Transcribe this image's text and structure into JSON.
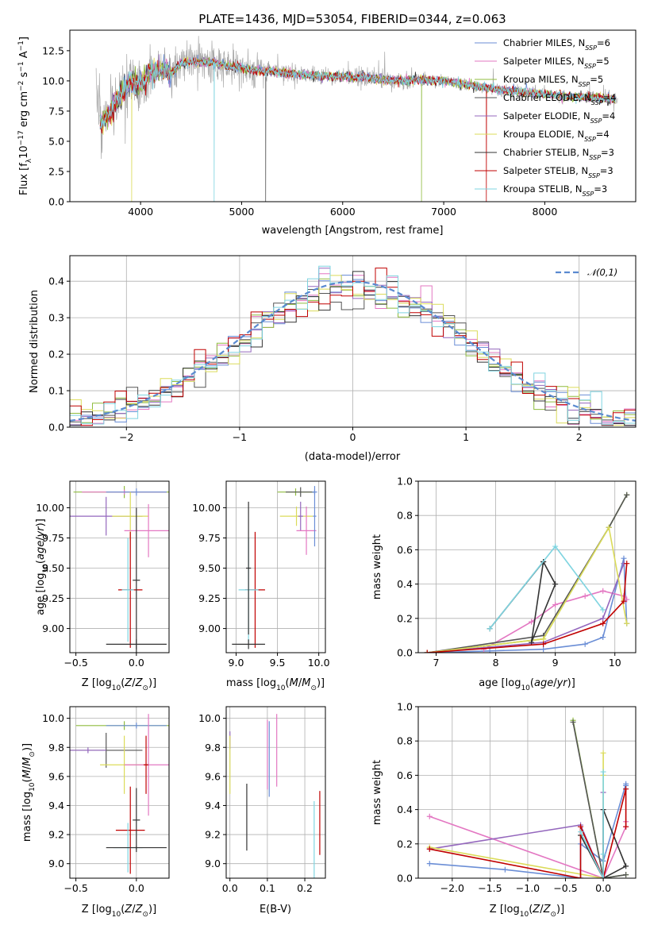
{
  "title": "PLATE=1436, MJD=53054, FIBERID=0344, z=0.063",
  "colors": [
    "#6b8ed6",
    "#e377c2",
    "#8fbc3f",
    "#555555",
    "#9467bd",
    "#dbdb5a",
    "#333333",
    "#c00000",
    "#7fd4e0"
  ],
  "chart_data": [
    {
      "id": "spectrum",
      "type": "line",
      "xlabel": "wavelength [Angstrom, rest frame]",
      "ylabel": "Flux [f_λ 10^-17 erg cm^-2 s^-1 A^-1]",
      "xlim": [
        3300,
        8900
      ],
      "ylim": [
        0,
        14.2
      ],
      "xticks": [
        4000,
        5000,
        6000,
        7000,
        8000
      ],
      "yticks": [
        0.0,
        2.5,
        5.0,
        7.5,
        10.0,
        12.5
      ],
      "grid": false,
      "legend": "upper-right",
      "legend_entries": [
        {
          "base": "Chabrier MILES, N",
          "sub": "SSP",
          "tail": "=6"
        },
        {
          "base": "Salpeter MILES, N",
          "sub": "SSP",
          "tail": "=5"
        },
        {
          "base": "Kroupa MILES, N",
          "sub": "SSP",
          "tail": "=5"
        },
        {
          "base": "Chabrier ELODIE, N",
          "sub": "SSP",
          "tail": "=4"
        },
        {
          "base": "Salpeter ELODIE, N",
          "sub": "SSP",
          "tail": "=4"
        },
        {
          "base": "Kroupa ELODIE, N",
          "sub": "SSP",
          "tail": "=4"
        },
        {
          "base": "Chabrier STELIB, N",
          "sub": "SSP",
          "tail": "=3"
        },
        {
          "base": "Salpeter STELIB, N",
          "sub": "SSP",
          "tail": "=3"
        },
        {
          "base": "Kroupa STELIB, N",
          "sub": "SSP",
          "tail": "=3"
        }
      ],
      "continuum": [
        [
          3600,
          6.3
        ],
        [
          3700,
          7.5
        ],
        [
          3800,
          8.8
        ],
        [
          3900,
          10.0
        ],
        [
          4000,
          9.7
        ],
        [
          4100,
          10.8
        ],
        [
          4200,
          11.0
        ],
        [
          4300,
          10.6
        ],
        [
          4400,
          11.5
        ],
        [
          4500,
          11.6
        ],
        [
          4700,
          11.5
        ],
        [
          4900,
          11.2
        ],
        [
          5100,
          10.9
        ],
        [
          5300,
          10.8
        ],
        [
          5500,
          10.6
        ],
        [
          5800,
          10.4
        ],
        [
          6200,
          10.3
        ],
        [
          6500,
          10.0
        ],
        [
          6800,
          10.1
        ],
        [
          7000,
          10.0
        ],
        [
          7300,
          9.6
        ],
        [
          7600,
          9.2
        ],
        [
          7900,
          9.0
        ],
        [
          8200,
          8.7
        ],
        [
          8500,
          8.6
        ],
        [
          8700,
          8.5
        ]
      ]
    },
    {
      "id": "residuals",
      "type": "histogram",
      "xlabel": "(data-model)/error",
      "ylabel": "Normed distribution",
      "xlim": [
        -2.5,
        2.5
      ],
      "ylim": [
        0,
        0.47
      ],
      "xticks": [
        -2,
        -1,
        0,
        1,
        2
      ],
      "yticks": [
        0.0,
        0.1,
        0.2,
        0.3,
        0.4
      ],
      "grid": true,
      "legend": "upper-right",
      "reference_label": "N(0,1)",
      "bin_width": 0.1
    },
    {
      "id": "age-vs-Z",
      "type": "errorbar",
      "xlabel": "Z [log10(Z/Z⊙)]",
      "ylabel": "age [log10(age/yr)]",
      "xlim": [
        -0.55,
        0.27
      ],
      "ylim": [
        8.8,
        10.22
      ],
      "xticks": [
        -0.5,
        0.0
      ],
      "yticks": [
        9.0,
        9.25,
        9.5,
        9.75,
        10.0
      ],
      "points": [
        {
          "x": -0.1,
          "y": 10.13,
          "dx": 0.42,
          "dy": 0.05,
          "c": 2
        },
        {
          "x": -0.1,
          "y": 10.13,
          "dx": 0.35,
          "dy": 0.02,
          "c": 1
        },
        {
          "x": 0.0,
          "y": 10.13,
          "dx": 0.25,
          "dy": 0.03,
          "c": 0
        },
        {
          "x": -0.25,
          "y": 9.93,
          "dx": 0.3,
          "dy": 0.16,
          "c": 4
        },
        {
          "x": -0.05,
          "y": 9.93,
          "dx": 0.15,
          "dy": 0.2,
          "c": 5
        },
        {
          "x": 0.1,
          "y": 9.81,
          "dx": 0.2,
          "dy": 0.22,
          "c": 1
        },
        {
          "x": -0.05,
          "y": 9.32,
          "dx": 0.1,
          "dy": 0.48,
          "c": 7
        },
        {
          "x": -0.07,
          "y": 9.32,
          "dx": 0.05,
          "dy": 0.43,
          "c": 8
        },
        {
          "x": 0.0,
          "y": 8.87,
          "dx": 0.25,
          "dy": 0.04,
          "c": 6
        },
        {
          "x": 0.0,
          "y": 9.4,
          "dx": 0.03,
          "dy": 0.6,
          "c": 6
        }
      ]
    },
    {
      "id": "age-vs-mass",
      "type": "errorbar",
      "xlabel": "mass [log10(M/M⊙)]",
      "ylabel": "",
      "xlim": [
        8.88,
        10.08
      ],
      "ylim": [
        8.8,
        10.22
      ],
      "xticks": [
        9.0,
        9.5,
        10.0
      ],
      "yticks": [
        9.0,
        9.25,
        9.5,
        9.75,
        10.0
      ],
      "points": [
        {
          "x": 9.72,
          "y": 10.13,
          "dx": 0.22,
          "dy": 0.03,
          "c": 2
        },
        {
          "x": 9.78,
          "y": 10.13,
          "dx": 0.18,
          "dy": 0.04,
          "c": 3
        },
        {
          "x": 9.95,
          "y": 10.13,
          "dx": 0.03,
          "dy": 0.02,
          "c": 0
        },
        {
          "x": 9.73,
          "y": 9.93,
          "dx": 0.2,
          "dy": 0.08,
          "c": 5
        },
        {
          "x": 9.78,
          "y": 9.93,
          "dx": 0.03,
          "dy": 0.12,
          "c": 4
        },
        {
          "x": 9.85,
          "y": 9.81,
          "dx": 0.12,
          "dy": 0.2,
          "c": 1
        },
        {
          "x": 9.95,
          "y": 9.93,
          "dx": 0.02,
          "dy": 0.25,
          "c": 0
        },
        {
          "x": 9.23,
          "y": 9.32,
          "dx": 0.12,
          "dy": 0.48,
          "c": 7
        },
        {
          "x": 9.15,
          "y": 9.32,
          "dx": 0.12,
          "dy": 0.43,
          "c": 8
        },
        {
          "x": 9.15,
          "y": 8.87,
          "dx": 0.2,
          "dy": 0.04,
          "c": 6
        },
        {
          "x": 9.15,
          "y": 9.5,
          "dx": 0.03,
          "dy": 0.55,
          "c": 6
        }
      ]
    },
    {
      "id": "massweight-vs-age",
      "type": "line",
      "xlabel": "age [log10(age/yr)]",
      "ylabel": "mass weight",
      "xlim": [
        6.7,
        10.35
      ],
      "ylim": [
        0,
        1.0
      ],
      "xticks": [
        7,
        8,
        9,
        10
      ],
      "yticks": [
        0.0,
        0.2,
        0.4,
        0.6,
        0.8,
        1.0
      ],
      "grid": true,
      "series": [
        {
          "c": 0,
          "x": [
            6.85,
            7.9,
            8.8,
            9.5,
            9.8,
            10.15,
            10.2
          ],
          "y": [
            0.0,
            0.01,
            0.02,
            0.05,
            0.09,
            0.55,
            0.17
          ]
        },
        {
          "c": 1,
          "x": [
            7.8,
            8.6,
            9.0,
            9.5,
            9.8,
            10.15,
            10.2
          ],
          "y": [
            0.02,
            0.18,
            0.28,
            0.33,
            0.36,
            0.33,
            0.31
          ]
        },
        {
          "c": 2,
          "x": [
            6.85,
            8.8,
            9.9,
            10.2
          ],
          "y": [
            0.0,
            0.08,
            0.73,
            0.92
          ]
        },
        {
          "c": 3,
          "x": [
            6.85,
            8.8,
            9.9,
            10.2
          ],
          "y": [
            0.0,
            0.1,
            0.73,
            0.92
          ]
        },
        {
          "c": 4,
          "x": [
            6.85,
            8.8,
            9.8,
            10.15
          ],
          "y": [
            0.0,
            0.06,
            0.2,
            0.52
          ]
        },
        {
          "c": 5,
          "x": [
            6.85,
            8.8,
            9.9,
            10.2
          ],
          "y": [
            0.0,
            0.08,
            0.73,
            0.17
          ]
        },
        {
          "c": 6,
          "x": [
            7.9,
            8.8,
            9.0,
            8.6,
            8.8
          ],
          "y": [
            0.14,
            0.53,
            0.4,
            0.06,
            0.53
          ]
        },
        {
          "c": 7,
          "x": [
            6.85,
            8.8,
            9.8,
            10.15,
            10.2
          ],
          "y": [
            0.0,
            0.05,
            0.17,
            0.3,
            0.52
          ]
        },
        {
          "c": 8,
          "x": [
            7.9,
            9.0,
            9.8
          ],
          "y": [
            0.14,
            0.62,
            0.25
          ]
        }
      ]
    },
    {
      "id": "mass-vs-Z",
      "type": "errorbar",
      "xlabel": "Z [log10(Z/Z⊙)]",
      "ylabel": "mass [log10(M/M⊙)]",
      "xlim": [
        -0.55,
        0.27
      ],
      "ylim": [
        8.9,
        10.08
      ],
      "xticks": [
        -0.5,
        0.0
      ],
      "yticks": [
        9.0,
        9.2,
        9.4,
        9.6,
        9.8,
        10.0
      ],
      "points": [
        {
          "x": -0.1,
          "y": 9.95,
          "dx": 0.4,
          "dy": 0.03,
          "c": 2
        },
        {
          "x": 0.0,
          "y": 9.95,
          "dx": 0.25,
          "dy": 0.02,
          "c": 0
        },
        {
          "x": -0.25,
          "y": 9.78,
          "dx": 0.3,
          "dy": 0.12,
          "c": 3
        },
        {
          "x": -0.4,
          "y": 9.78,
          "dx": 0.15,
          "dy": 0.02,
          "c": 4
        },
        {
          "x": -0.1,
          "y": 9.68,
          "dx": 0.2,
          "dy": 0.2,
          "c": 5
        },
        {
          "x": 0.1,
          "y": 9.68,
          "dx": 0.2,
          "dy": 0.35,
          "c": 1
        },
        {
          "x": 0.08,
          "y": 9.68,
          "dx": 0.02,
          "dy": 0.2,
          "c": 7
        },
        {
          "x": -0.05,
          "y": 9.23,
          "dx": 0.12,
          "dy": 0.3,
          "c": 7
        },
        {
          "x": -0.07,
          "y": 9.11,
          "dx": 0.12,
          "dy": 0.17,
          "c": 8
        },
        {
          "x": 0.0,
          "y": 9.11,
          "dx": 0.25,
          "dy": 0.01,
          "c": 6
        },
        {
          "x": 0.0,
          "y": 9.3,
          "dx": 0.03,
          "dy": 0.22,
          "c": 6
        }
      ]
    },
    {
      "id": "mass-vs-EBV",
      "type": "errorbar",
      "xlabel": "E(B-V)",
      "ylabel": "",
      "xlim": [
        -0.01,
        0.255
      ],
      "ylim": [
        8.9,
        10.08
      ],
      "xticks": [
        0.0,
        0.1,
        0.2
      ],
      "yticks": [
        9.0,
        9.2,
        9.4,
        9.6,
        9.8,
        10.0
      ],
      "points": [
        {
          "x": 0.0,
          "y": 9.85,
          "dx": 0.0,
          "dy": 0.06,
          "c": 4
        },
        {
          "x": 0.0,
          "y": 9.68,
          "dx": 0.0,
          "dy": 0.2,
          "c": 5
        },
        {
          "x": 0.045,
          "y": 9.32,
          "dx": 0.0,
          "dy": 0.23,
          "c": 6
        },
        {
          "x": 0.105,
          "y": 9.72,
          "dx": 0.0,
          "dy": 0.26,
          "c": 0
        },
        {
          "x": 0.1,
          "y": 9.75,
          "dx": 0.0,
          "dy": 0.24,
          "c": 1
        },
        {
          "x": 0.125,
          "y": 9.78,
          "dx": 0.0,
          "dy": 0.25,
          "c": 1
        },
        {
          "x": 0.225,
          "y": 9.13,
          "dx": 0.0,
          "dy": 0.3,
          "c": 8
        },
        {
          "x": 0.24,
          "y": 9.28,
          "dx": 0.0,
          "dy": 0.22,
          "c": 7
        }
      ]
    },
    {
      "id": "massweight-vs-Z",
      "type": "line",
      "xlabel": "Z [log10(Z/Z⊙)]",
      "ylabel": "mass weight",
      "xlim": [
        -2.45,
        0.43
      ],
      "ylim": [
        0,
        1.0
      ],
      "xticks": [
        -2.0,
        -1.5,
        -1.0,
        -0.5,
        0.0
      ],
      "yticks": [
        0.0,
        0.2,
        0.4,
        0.6,
        0.8,
        1.0
      ],
      "grid": true,
      "series": [
        {
          "c": 0,
          "x": [
            -2.3,
            -1.3,
            -0.3,
            -0.3,
            0.0,
            0.3,
            0.3
          ],
          "y": [
            0.085,
            0.05,
            0.0,
            0.2,
            0.1,
            0.55,
            0.54
          ]
        },
        {
          "c": 1,
          "x": [
            -2.3,
            0.0,
            0.3,
            0.3
          ],
          "y": [
            0.36,
            0.0,
            0.3,
            0.33
          ]
        },
        {
          "c": 2,
          "x": [
            -0.4,
            0.0,
            0.3
          ],
          "y": [
            0.92,
            0.0,
            0.02
          ]
        },
        {
          "c": 3,
          "x": [
            -0.4,
            0.0,
            0.3
          ],
          "y": [
            0.91,
            0.0,
            0.02
          ]
        },
        {
          "c": 4,
          "x": [
            -2.3,
            -0.3,
            0.0,
            0.0
          ],
          "y": [
            0.17,
            0.31,
            0.0,
            0.5
          ]
        },
        {
          "c": 5,
          "x": [
            -2.3,
            0.0,
            0.0,
            0.0
          ],
          "y": [
            0.18,
            0.0,
            0.73,
            0.6
          ]
        },
        {
          "c": 6,
          "x": [
            -0.3,
            0.0,
            0.3,
            0.0,
            0.0
          ],
          "y": [
            0.25,
            0.0,
            0.07,
            0.4,
            0.0
          ]
        },
        {
          "c": 7,
          "x": [
            -2.3,
            -0.3,
            -0.3,
            0.0,
            0.3,
            0.3
          ],
          "y": [
            0.17,
            0.0,
            0.3,
            0.0,
            0.52,
            0.3
          ]
        },
        {
          "c": 8,
          "x": [
            -0.3,
            0.0,
            0.0,
            0.0
          ],
          "y": [
            0.27,
            0.0,
            0.62,
            0.14
          ]
        }
      ]
    }
  ]
}
